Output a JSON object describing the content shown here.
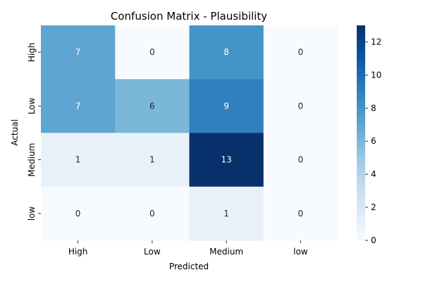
{
  "chart_data": {
    "type": "heatmap",
    "title": "Confusion Matrix - Plausibility",
    "xlabel": "Predicted",
    "ylabel": "Actual",
    "x_categories": [
      "High",
      "Low",
      "Medium",
      "low"
    ],
    "y_categories": [
      "High",
      "Low",
      "Medium",
      "low"
    ],
    "values": [
      [
        7,
        0,
        8,
        0
      ],
      [
        7,
        6,
        9,
        0
      ],
      [
        1,
        1,
        13,
        0
      ],
      [
        0,
        0,
        1,
        0
      ]
    ],
    "colormap": "Blues",
    "value_range": [
      0,
      13
    ],
    "colorbar_ticks": [
      0,
      2,
      4,
      6,
      8,
      10,
      12
    ],
    "annotated": true
  }
}
